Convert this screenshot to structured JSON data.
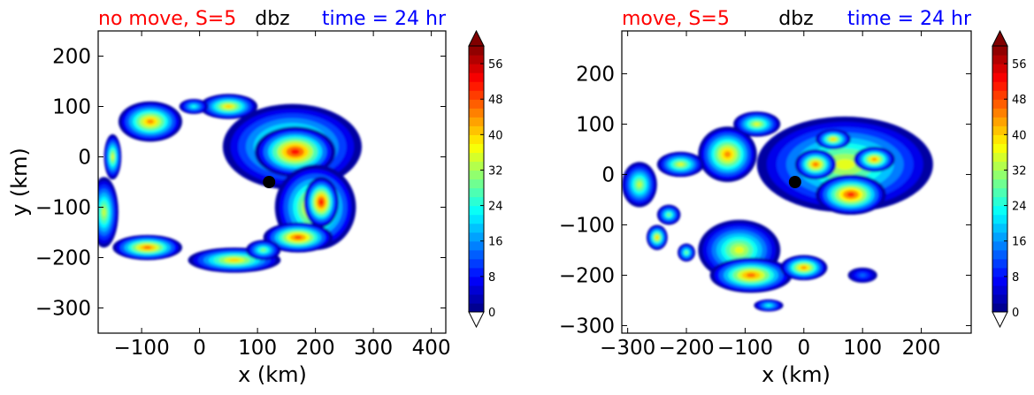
{
  "chart_data": [
    {
      "type": "contour",
      "title_left": "no move, S=5",
      "title_center": "dbz",
      "title_right": "time = 24 hr",
      "xlabel": "x (km)",
      "ylabel": "y (km)",
      "xlim": [
        -175,
        425
      ],
      "ylim": [
        -350,
        250
      ],
      "xticks": [
        -100,
        0,
        100,
        200,
        300,
        400
      ],
      "xtick_labels": [
        "−100",
        "0",
        "100",
        "200",
        "300",
        "400"
      ],
      "yticks": [
        200,
        100,
        0,
        -100,
        -200,
        -300
      ],
      "ytick_labels": [
        "200",
        "100",
        "0",
        "−100",
        "−200",
        "−300"
      ],
      "center_marker": [
        120,
        -50
      ],
      "colorbar": {
        "levels": [
          0,
          8,
          16,
          24,
          32,
          40,
          48,
          56
        ],
        "labels": [
          "0",
          "8",
          "16",
          "24",
          "32",
          "40",
          "48",
          "56"
        ],
        "vmin": 0,
        "vmax": 60,
        "extend": "both"
      },
      "blobs": [
        {
          "x": 160,
          "y": 20,
          "rx": 120,
          "ry": 85,
          "peak": 38
        },
        {
          "x": 165,
          "y": 10,
          "rx": 70,
          "ry": 50,
          "peak": 52
        },
        {
          "x": 200,
          "y": -100,
          "rx": 70,
          "ry": 85,
          "peak": 44
        },
        {
          "x": 210,
          "y": -90,
          "rx": 30,
          "ry": 50,
          "peak": 52
        },
        {
          "x": 170,
          "y": -160,
          "rx": 60,
          "ry": 30,
          "peak": 48
        },
        {
          "x": -85,
          "y": 70,
          "rx": 55,
          "ry": 40,
          "peak": 44
        },
        {
          "x": 50,
          "y": 100,
          "rx": 50,
          "ry": 25,
          "peak": 40
        },
        {
          "x": -10,
          "y": 100,
          "rx": 25,
          "ry": 15,
          "peak": 24
        },
        {
          "x": -150,
          "y": 0,
          "rx": 15,
          "ry": 45,
          "peak": 36
        },
        {
          "x": -165,
          "y": -110,
          "rx": 25,
          "ry": 70,
          "peak": 34
        },
        {
          "x": -90,
          "y": -180,
          "rx": 60,
          "ry": 25,
          "peak": 46
        },
        {
          "x": 60,
          "y": -205,
          "rx": 80,
          "ry": 25,
          "peak": 40
        },
        {
          "x": 110,
          "y": -185,
          "rx": 30,
          "ry": 20,
          "peak": 30
        }
      ]
    },
    {
      "type": "contour",
      "title_left": "move, S=5",
      "title_center": "dbz",
      "title_right": "time = 24 hr",
      "xlabel": "x (km)",
      "ylabel": "",
      "xlim": [
        -310,
        285
      ],
      "ylim": [
        -315,
        285
      ],
      "xticks": [
        -300,
        -200,
        -100,
        0,
        100,
        200
      ],
      "xtick_labels": [
        "−300",
        "−200",
        "−100",
        "0",
        "100",
        "200"
      ],
      "yticks": [
        200,
        100,
        0,
        -100,
        -200,
        -300
      ],
      "ytick_labels": [
        "200",
        "100",
        "0",
        "−100",
        "−200",
        "−300"
      ],
      "center_marker": [
        -15,
        -15
      ],
      "colorbar": {
        "levels": [
          0,
          8,
          16,
          24,
          32,
          40,
          48,
          56
        ],
        "labels": [
          "0",
          "8",
          "16",
          "24",
          "32",
          "40",
          "48",
          "56"
        ],
        "vmin": 0,
        "vmax": 60,
        "extend": "both"
      },
      "blobs": [
        {
          "x": 70,
          "y": 20,
          "rx": 150,
          "ry": 95,
          "peak": 36
        },
        {
          "x": 80,
          "y": -40,
          "rx": 60,
          "ry": 40,
          "peak": 50
        },
        {
          "x": 20,
          "y": 20,
          "rx": 35,
          "ry": 30,
          "peak": 46
        },
        {
          "x": 120,
          "y": 30,
          "rx": 35,
          "ry": 25,
          "peak": 44
        },
        {
          "x": 50,
          "y": 70,
          "rx": 30,
          "ry": 20,
          "peak": 40
        },
        {
          "x": -130,
          "y": 40,
          "rx": 50,
          "ry": 55,
          "peak": 44
        },
        {
          "x": -80,
          "y": 100,
          "rx": 40,
          "ry": 25,
          "peak": 36
        },
        {
          "x": -210,
          "y": 20,
          "rx": 40,
          "ry": 25,
          "peak": 36
        },
        {
          "x": -280,
          "y": -20,
          "rx": 30,
          "ry": 45,
          "peak": 34
        },
        {
          "x": -230,
          "y": -80,
          "rx": 20,
          "ry": 20,
          "peak": 30
        },
        {
          "x": -250,
          "y": -125,
          "rx": 18,
          "ry": 25,
          "peak": 40
        },
        {
          "x": -200,
          "y": -155,
          "rx": 15,
          "ry": 18,
          "peak": 30
        },
        {
          "x": -110,
          "y": -150,
          "rx": 70,
          "ry": 60,
          "peak": 36
        },
        {
          "x": -90,
          "y": -200,
          "rx": 70,
          "ry": 35,
          "peak": 46
        },
        {
          "x": 0,
          "y": -185,
          "rx": 40,
          "ry": 25,
          "peak": 44
        },
        {
          "x": -60,
          "y": -260,
          "rx": 25,
          "ry": 12,
          "peak": 24
        },
        {
          "x": 100,
          "y": -200,
          "rx": 25,
          "ry": 15,
          "peak": 14
        }
      ]
    }
  ]
}
